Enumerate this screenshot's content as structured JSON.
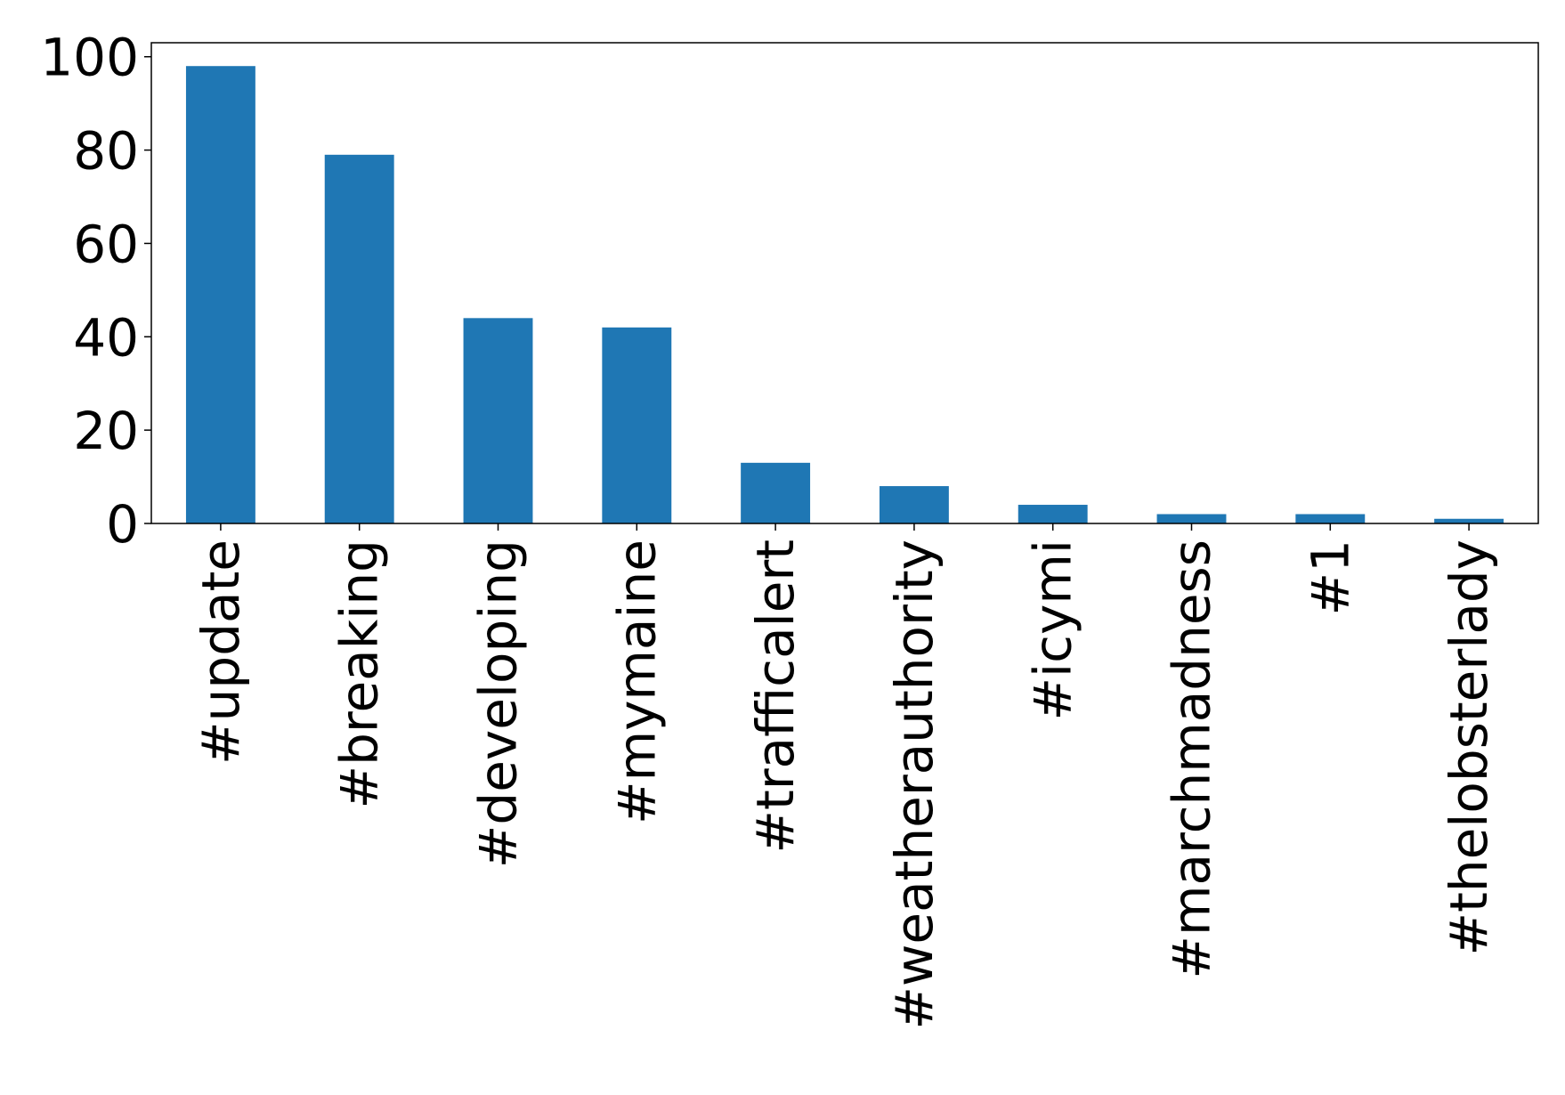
{
  "chart_data": {
    "type": "bar",
    "title": "",
    "xlabel": "",
    "ylabel": "",
    "categories": [
      "#update",
      "#breaking",
      "#developing",
      "#mymaine",
      "#trafficalert",
      "#weatherauthority",
      "#icymi",
      "#marchmadness",
      "#1",
      "#thelobsterlady"
    ],
    "values": [
      98,
      79,
      44,
      42,
      13,
      8,
      4,
      2,
      2,
      1
    ],
    "ylim": [
      0,
      103
    ],
    "yticks": [
      0,
      20,
      40,
      60,
      80,
      100
    ],
    "bar_color": "#1f77b4",
    "grid": false,
    "legend": "none"
  }
}
